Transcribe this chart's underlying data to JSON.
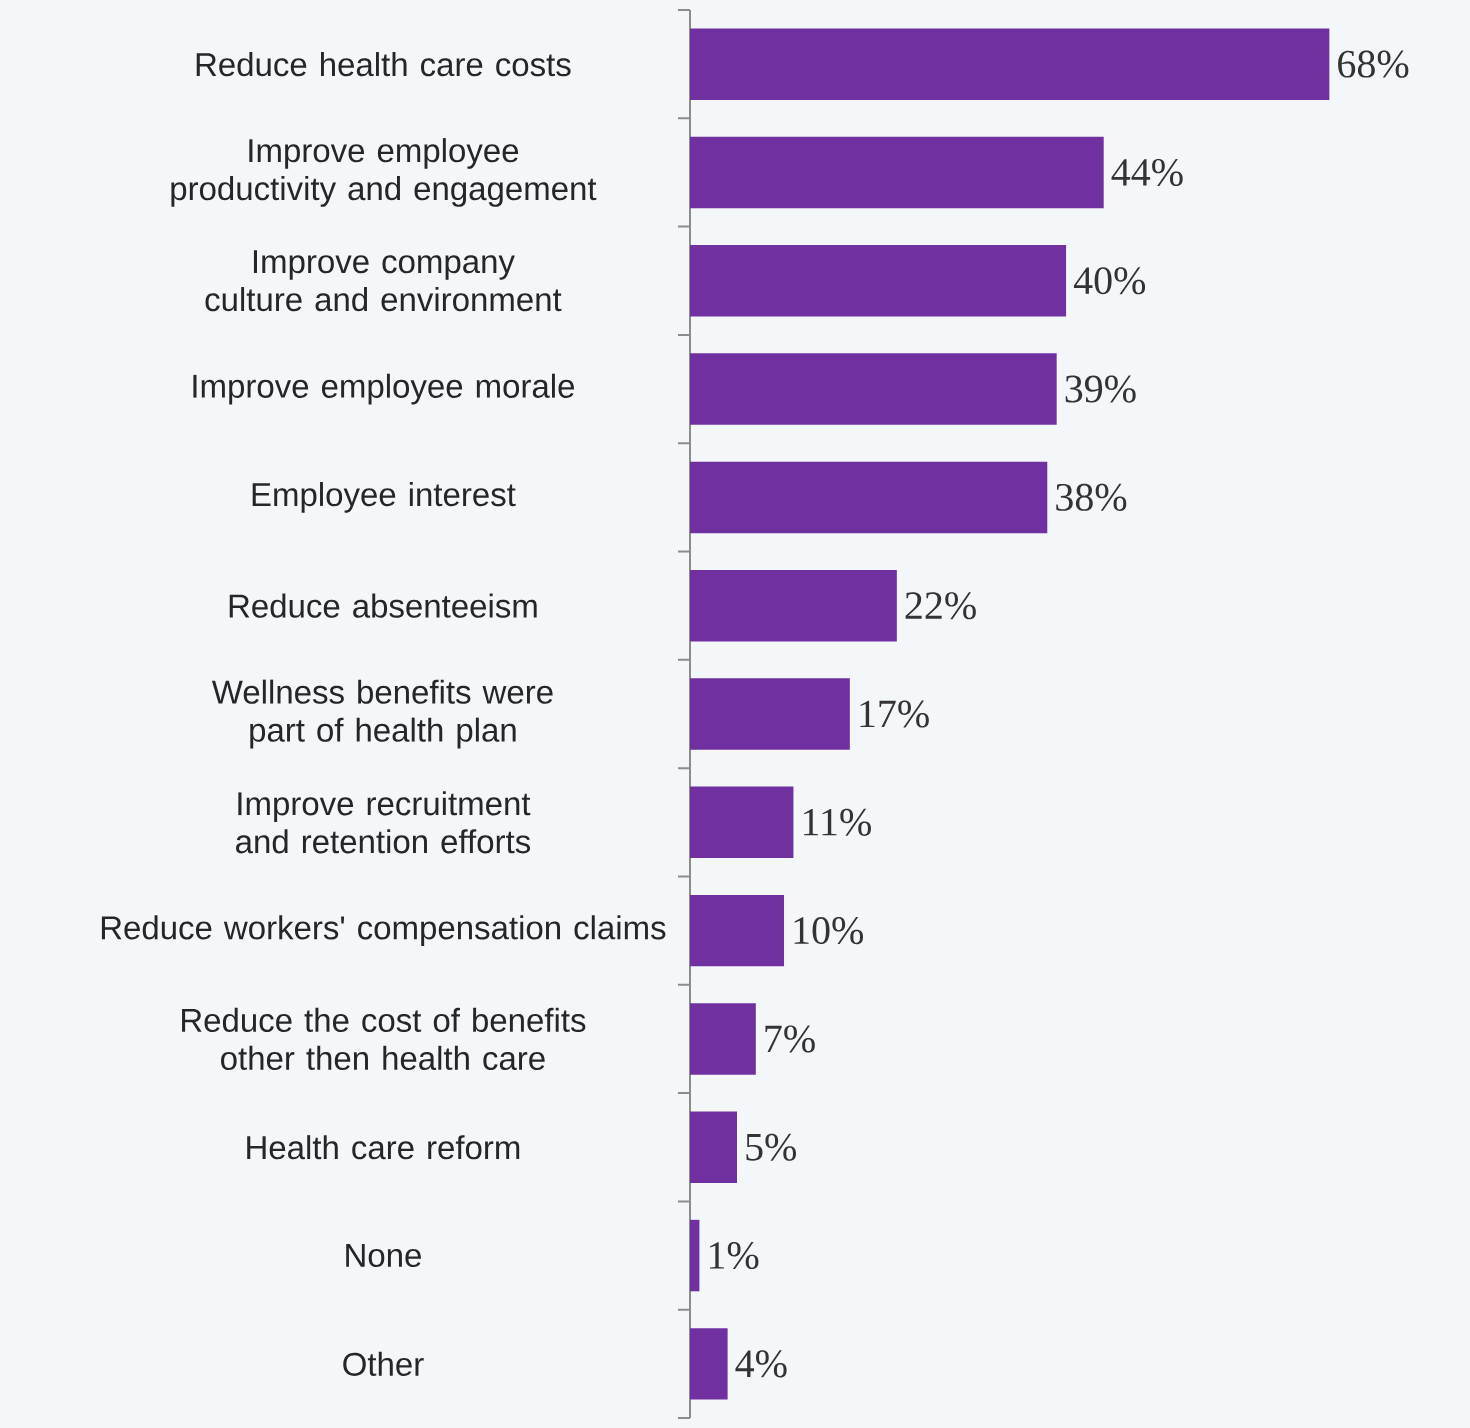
{
  "chart_data": {
    "type": "bar",
    "orientation": "horizontal",
    "categories": [
      "Reduce health care costs",
      "Improve employee productivity and engagement",
      "Improve company culture and environment",
      "Improve employee morale",
      "Employee interest",
      "Reduce absenteeism",
      "Wellness benefits were part of health plan",
      "Improve recruitment and retention efforts",
      "Reduce workers' compensation claims",
      "Reduce the cost of benefits other then health care",
      "Health care reform",
      "None",
      "Other"
    ],
    "values": [
      68,
      44,
      40,
      39,
      38,
      22,
      17,
      11,
      10,
      7,
      5,
      1,
      4
    ],
    "value_labels": [
      "68%",
      "44%",
      "40%",
      "39%",
      "38%",
      "22%",
      "17%",
      "11%",
      "10%",
      "7%",
      "5%",
      "1%",
      "4%"
    ],
    "color": "#7030a0"
  }
}
